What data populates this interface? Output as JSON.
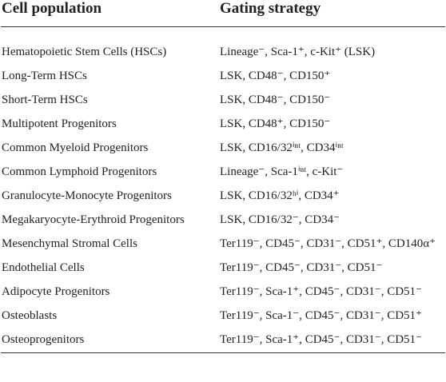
{
  "table": {
    "header": [
      "Cell population",
      "Gating strategy"
    ],
    "rows": [
      [
        "Hematopoietic Stem Cells (HSCs)",
        "Lineage⁻, Sca-1⁺, c-Kit⁺ (LSK)"
      ],
      [
        "Long-Term HSCs",
        "LSK, CD48⁻, CD150⁺"
      ],
      [
        "Short-Term HSCs",
        "LSK, CD48⁻, CD150⁻"
      ],
      [
        "Multipotent Progenitors",
        "LSK, CD48⁺, CD150⁻"
      ],
      [
        "Common Myeloid Progenitors",
        "LSK, CD16/32ⁱⁿᵗ, CD34ⁱⁿᵗ"
      ],
      [
        "Common Lymphoid Progenitors",
        "Lineage⁻, Sca-1ⁱⁿᵗ, c-Kit⁻"
      ],
      [
        "Granulocyte-Monocyte Progenitors",
        "LSK, CD16/32ʰⁱ, CD34⁺"
      ],
      [
        "Megakaryocyte-Erythroid Progenitors",
        "LSK, CD16/32⁻, CD34⁻"
      ],
      [
        "Mesenchymal Stromal Cells",
        "Ter119⁻, CD45⁻, CD31⁻, CD51⁺, CD140α⁺"
      ],
      [
        "Endothelial Cells",
        "Ter119⁻, CD45⁻, CD31⁻, CD51⁻"
      ],
      [
        "Adipocyte Progenitors",
        "Ter119⁻, Sca-1⁺, CD45⁻, CD31⁻, CD51⁻"
      ],
      [
        "Osteoblasts",
        "Ter119⁻, Sca-1⁻, CD45⁻, CD31⁻, CD51⁺"
      ],
      [
        "Osteoprogenitors",
        "Ter119⁻, Sca-1⁺, CD45⁻, CD31⁻, CD51⁻"
      ]
    ]
  }
}
